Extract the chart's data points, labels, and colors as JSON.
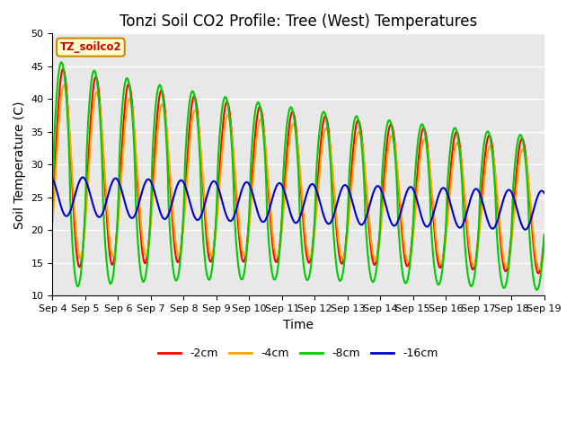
{
  "title": "Tonzi Soil CO2 Profile: Tree (West) Temperatures",
  "xlabel": "Time",
  "ylabel": "Soil Temperature (C)",
  "ylim": [
    10,
    50
  ],
  "xlim": [
    0,
    15
  ],
  "xtick_labels": [
    "Sep 4",
    "Sep 5",
    "Sep 6",
    "Sep 7",
    "Sep 8",
    "Sep 9",
    "Sep 10",
    "Sep 11",
    "Sep 12",
    "Sep 13",
    "Sep 14",
    "Sep 15",
    "Sep 16",
    "Sep 17",
    "Sep 18",
    "Sep 19"
  ],
  "line_colors": [
    "#ff0000",
    "#ffa500",
    "#00cc00",
    "#0000cc"
  ],
  "line_labels": [
    "-2cm",
    "-4cm",
    "-8cm",
    "-16cm"
  ],
  "legend_box_label": "TZ_soilco2",
  "legend_box_color": "#ffffcc",
  "legend_box_edge": "#cc8800",
  "background_color": "#e8e8e8",
  "title_fontsize": 12,
  "axis_label_fontsize": 10,
  "tick_fontsize": 8
}
